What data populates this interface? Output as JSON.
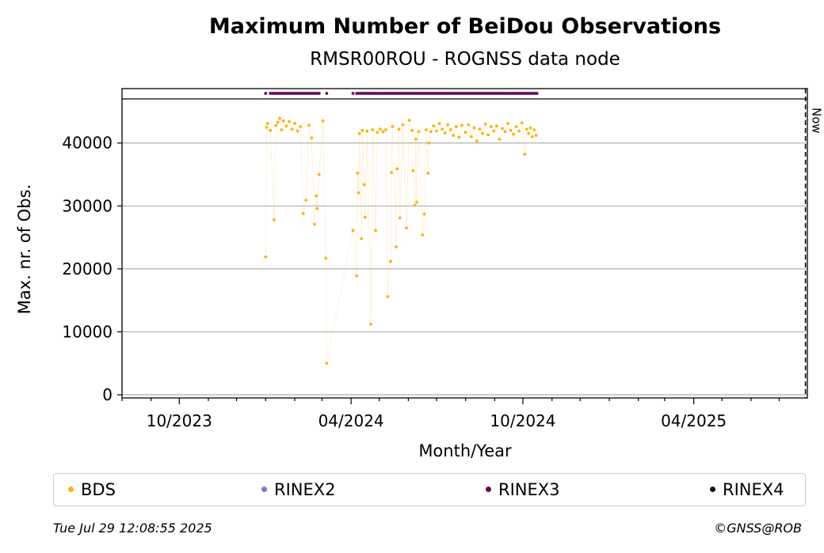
{
  "chart_data": {
    "type": "scatter",
    "title": "Maximum Number of BeiDou Observations",
    "subtitle": "RMSR00ROU - ROGNSS data node",
    "xlabel": "Month/Year",
    "ylabel": "Max. nr. of Obs.",
    "x_ticks": [
      "10/2023",
      "04/2024",
      "10/2024",
      "04/2025"
    ],
    "x_range": [
      "2023-08-01",
      "2025-07-31"
    ],
    "y_ticks": [
      0,
      10000,
      20000,
      30000,
      40000
    ],
    "ylim": [
      0,
      46000
    ],
    "grid": "horizontal",
    "now_marker": {
      "label": "Now",
      "date": "2025-07-29"
    },
    "series": [
      {
        "name": "BDS",
        "color": "#fbb30f",
        "points": [
          [
            "2024-01-01",
            21900
          ],
          [
            "2024-01-02",
            42500
          ],
          [
            "2024-01-03",
            43100
          ],
          [
            "2024-01-06",
            42000
          ],
          [
            "2024-01-10",
            27800
          ],
          [
            "2024-01-12",
            42800
          ],
          [
            "2024-01-14",
            43300
          ],
          [
            "2024-01-16",
            43900
          ],
          [
            "2024-01-18",
            42100
          ],
          [
            "2024-01-20",
            43500
          ],
          [
            "2024-01-23",
            42700
          ],
          [
            "2024-01-26",
            43400
          ],
          [
            "2024-01-29",
            42200
          ],
          [
            "2024-02-01",
            43100
          ],
          [
            "2024-02-04",
            41900
          ],
          [
            "2024-02-07",
            42600
          ],
          [
            "2024-02-10",
            28800
          ],
          [
            "2024-02-13",
            30900
          ],
          [
            "2024-02-16",
            42800
          ],
          [
            "2024-02-19",
            40800
          ],
          [
            "2024-02-22",
            27100
          ],
          [
            "2024-02-24",
            31600
          ],
          [
            "2024-02-25",
            29600
          ],
          [
            "2024-02-27",
            35000
          ],
          [
            "2024-03-02",
            43500
          ],
          [
            "2024-03-05",
            21700
          ],
          [
            "2024-03-06",
            5000
          ],
          [
            "2024-04-03",
            26100
          ],
          [
            "2024-04-07",
            18900
          ],
          [
            "2024-04-08",
            35200
          ],
          [
            "2024-04-09",
            32100
          ],
          [
            "2024-04-10",
            41500
          ],
          [
            "2024-04-12",
            24800
          ],
          [
            "2024-04-13",
            42000
          ],
          [
            "2024-04-15",
            33400
          ],
          [
            "2024-04-16",
            28200
          ],
          [
            "2024-04-18",
            41900
          ],
          [
            "2024-04-22",
            11200
          ],
          [
            "2024-04-24",
            42100
          ],
          [
            "2024-04-27",
            26100
          ],
          [
            "2024-04-29",
            41700
          ],
          [
            "2024-05-02",
            42200
          ],
          [
            "2024-05-05",
            41800
          ],
          [
            "2024-05-08",
            42100
          ],
          [
            "2024-05-10",
            15600
          ],
          [
            "2024-05-13",
            21200
          ],
          [
            "2024-05-14",
            35300
          ],
          [
            "2024-05-15",
            42600
          ],
          [
            "2024-05-19",
            23500
          ],
          [
            "2024-05-20",
            35900
          ],
          [
            "2024-05-22",
            42200
          ],
          [
            "2024-05-23",
            28100
          ],
          [
            "2024-05-26",
            42900
          ],
          [
            "2024-05-30",
            26500
          ],
          [
            "2024-06-02",
            43600
          ],
          [
            "2024-06-05",
            42000
          ],
          [
            "2024-06-06",
            35600
          ],
          [
            "2024-06-08",
            30100
          ],
          [
            "2024-06-09",
            40600
          ],
          [
            "2024-06-10",
            30600
          ],
          [
            "2024-06-12",
            41800
          ],
          [
            "2024-06-16",
            25400
          ],
          [
            "2024-06-18",
            28700
          ],
          [
            "2024-06-20",
            42100
          ],
          [
            "2024-06-22",
            35200
          ],
          [
            "2024-06-23",
            40000
          ],
          [
            "2024-06-25",
            41800
          ],
          [
            "2024-06-28",
            42700
          ],
          [
            "2024-07-01",
            41900
          ],
          [
            "2024-07-04",
            43100
          ],
          [
            "2024-07-07",
            42200
          ],
          [
            "2024-07-10",
            41600
          ],
          [
            "2024-07-13",
            42900
          ],
          [
            "2024-07-16",
            42100
          ],
          [
            "2024-07-19",
            41200
          ],
          [
            "2024-07-22",
            42600
          ],
          [
            "2024-07-25",
            40900
          ],
          [
            "2024-07-28",
            42800
          ],
          [
            "2024-08-01",
            41700
          ],
          [
            "2024-08-04",
            42900
          ],
          [
            "2024-08-07",
            41000
          ],
          [
            "2024-08-10",
            42400
          ],
          [
            "2024-08-13",
            40300
          ],
          [
            "2024-08-16",
            42200
          ],
          [
            "2024-08-19",
            41500
          ],
          [
            "2024-08-22",
            43000
          ],
          [
            "2024-08-25",
            41300
          ],
          [
            "2024-08-28",
            42600
          ],
          [
            "2024-08-31",
            41900
          ],
          [
            "2024-09-03",
            42700
          ],
          [
            "2024-09-06",
            40600
          ],
          [
            "2024-09-09",
            42300
          ],
          [
            "2024-09-12",
            41800
          ],
          [
            "2024-09-15",
            43100
          ],
          [
            "2024-09-18",
            42000
          ],
          [
            "2024-09-21",
            41400
          ],
          [
            "2024-09-24",
            42600
          ],
          [
            "2024-09-27",
            41900
          ],
          [
            "2024-09-30",
            43200
          ],
          [
            "2024-10-03",
            38200
          ],
          [
            "2024-10-05",
            42200
          ],
          [
            "2024-10-07",
            41500
          ],
          [
            "2024-10-09",
            42400
          ],
          [
            "2024-10-11",
            41000
          ],
          [
            "2024-10-13",
            42100
          ],
          [
            "2024-10-15",
            41200
          ]
        ]
      },
      {
        "name": "RINEX2",
        "color": "#7b79bf",
        "points": []
      },
      {
        "name": "RINEX3",
        "color": "#68055c",
        "points": [
          [
            "2024-01-01"
          ],
          [
            "2024-01-06"
          ],
          [
            "2024-01-08"
          ],
          [
            "2024-01-10"
          ],
          [
            "2024-01-12"
          ],
          [
            "2024-01-14"
          ],
          [
            "2024-01-16"
          ],
          [
            "2024-01-18"
          ],
          [
            "2024-01-20"
          ],
          [
            "2024-01-22"
          ],
          [
            "2024-01-24"
          ],
          [
            "2024-01-26"
          ],
          [
            "2024-01-28"
          ],
          [
            "2024-01-30"
          ],
          [
            "2024-02-01"
          ],
          [
            "2024-02-03"
          ],
          [
            "2024-02-05"
          ],
          [
            "2024-02-07"
          ],
          [
            "2024-02-09"
          ],
          [
            "2024-02-11"
          ],
          [
            "2024-02-13"
          ],
          [
            "2024-02-15"
          ],
          [
            "2024-02-17"
          ],
          [
            "2024-02-19"
          ],
          [
            "2024-02-21"
          ],
          [
            "2024-02-23"
          ],
          [
            "2024-02-25"
          ],
          [
            "2024-02-27"
          ],
          [
            "2024-03-06"
          ],
          [
            "2024-04-03"
          ],
          [
            "2024-04-07"
          ],
          [
            "2024-04-09"
          ],
          [
            "2024-04-11"
          ],
          [
            "2024-04-13"
          ],
          [
            "2024-04-15"
          ],
          [
            "2024-04-17"
          ],
          [
            "2024-04-19"
          ],
          [
            "2024-04-21"
          ],
          [
            "2024-04-23"
          ],
          [
            "2024-04-25"
          ],
          [
            "2024-04-27"
          ],
          [
            "2024-04-29"
          ],
          [
            "2024-05-01"
          ],
          [
            "2024-05-03"
          ],
          [
            "2024-05-05"
          ],
          [
            "2024-05-07"
          ],
          [
            "2024-05-09"
          ],
          [
            "2024-05-11"
          ],
          [
            "2024-05-13"
          ],
          [
            "2024-05-15"
          ],
          [
            "2024-05-17"
          ],
          [
            "2024-05-19"
          ],
          [
            "2024-05-21"
          ],
          [
            "2024-05-23"
          ],
          [
            "2024-05-25"
          ],
          [
            "2024-05-27"
          ],
          [
            "2024-05-29"
          ],
          [
            "2024-05-31"
          ],
          [
            "2024-06-02"
          ],
          [
            "2024-06-04"
          ],
          [
            "2024-06-06"
          ],
          [
            "2024-06-08"
          ],
          [
            "2024-06-10"
          ],
          [
            "2024-06-12"
          ],
          [
            "2024-06-14"
          ],
          [
            "2024-06-16"
          ],
          [
            "2024-06-18"
          ],
          [
            "2024-06-20"
          ],
          [
            "2024-06-22"
          ],
          [
            "2024-06-24"
          ],
          [
            "2024-06-26"
          ],
          [
            "2024-06-28"
          ],
          [
            "2024-06-30"
          ],
          [
            "2024-07-02"
          ],
          [
            "2024-07-04"
          ],
          [
            "2024-07-06"
          ],
          [
            "2024-07-08"
          ],
          [
            "2024-07-10"
          ],
          [
            "2024-07-12"
          ],
          [
            "2024-07-14"
          ],
          [
            "2024-07-16"
          ],
          [
            "2024-07-18"
          ],
          [
            "2024-07-20"
          ],
          [
            "2024-07-22"
          ],
          [
            "2024-07-24"
          ],
          [
            "2024-07-26"
          ],
          [
            "2024-07-28"
          ],
          [
            "2024-07-30"
          ],
          [
            "2024-08-01"
          ],
          [
            "2024-08-03"
          ],
          [
            "2024-08-05"
          ],
          [
            "2024-08-07"
          ],
          [
            "2024-08-09"
          ],
          [
            "2024-08-11"
          ],
          [
            "2024-08-13"
          ],
          [
            "2024-08-15"
          ],
          [
            "2024-08-17"
          ],
          [
            "2024-08-19"
          ],
          [
            "2024-08-21"
          ],
          [
            "2024-08-23"
          ],
          [
            "2024-08-25"
          ],
          [
            "2024-08-27"
          ],
          [
            "2024-08-29"
          ],
          [
            "2024-08-31"
          ],
          [
            "2024-09-02"
          ],
          [
            "2024-09-04"
          ],
          [
            "2024-09-06"
          ],
          [
            "2024-09-08"
          ],
          [
            "2024-09-10"
          ],
          [
            "2024-09-12"
          ],
          [
            "2024-09-14"
          ],
          [
            "2024-09-16"
          ],
          [
            "2024-09-18"
          ],
          [
            "2024-09-20"
          ],
          [
            "2024-09-22"
          ],
          [
            "2024-09-24"
          ],
          [
            "2024-09-26"
          ],
          [
            "2024-09-28"
          ],
          [
            "2024-09-30"
          ],
          [
            "2024-10-02"
          ],
          [
            "2024-10-04"
          ],
          [
            "2024-10-06"
          ],
          [
            "2024-10-08"
          ],
          [
            "2024-10-10"
          ],
          [
            "2024-10-12"
          ],
          [
            "2024-10-14"
          ],
          [
            "2024-10-16"
          ]
        ]
      },
      {
        "name": "RINEX4",
        "color": "#1f0a1d",
        "points": []
      }
    ]
  },
  "footer": {
    "timestamp": "Tue Jul 29 12:08:55 2025",
    "copyright": "©GNSS@ROB"
  }
}
